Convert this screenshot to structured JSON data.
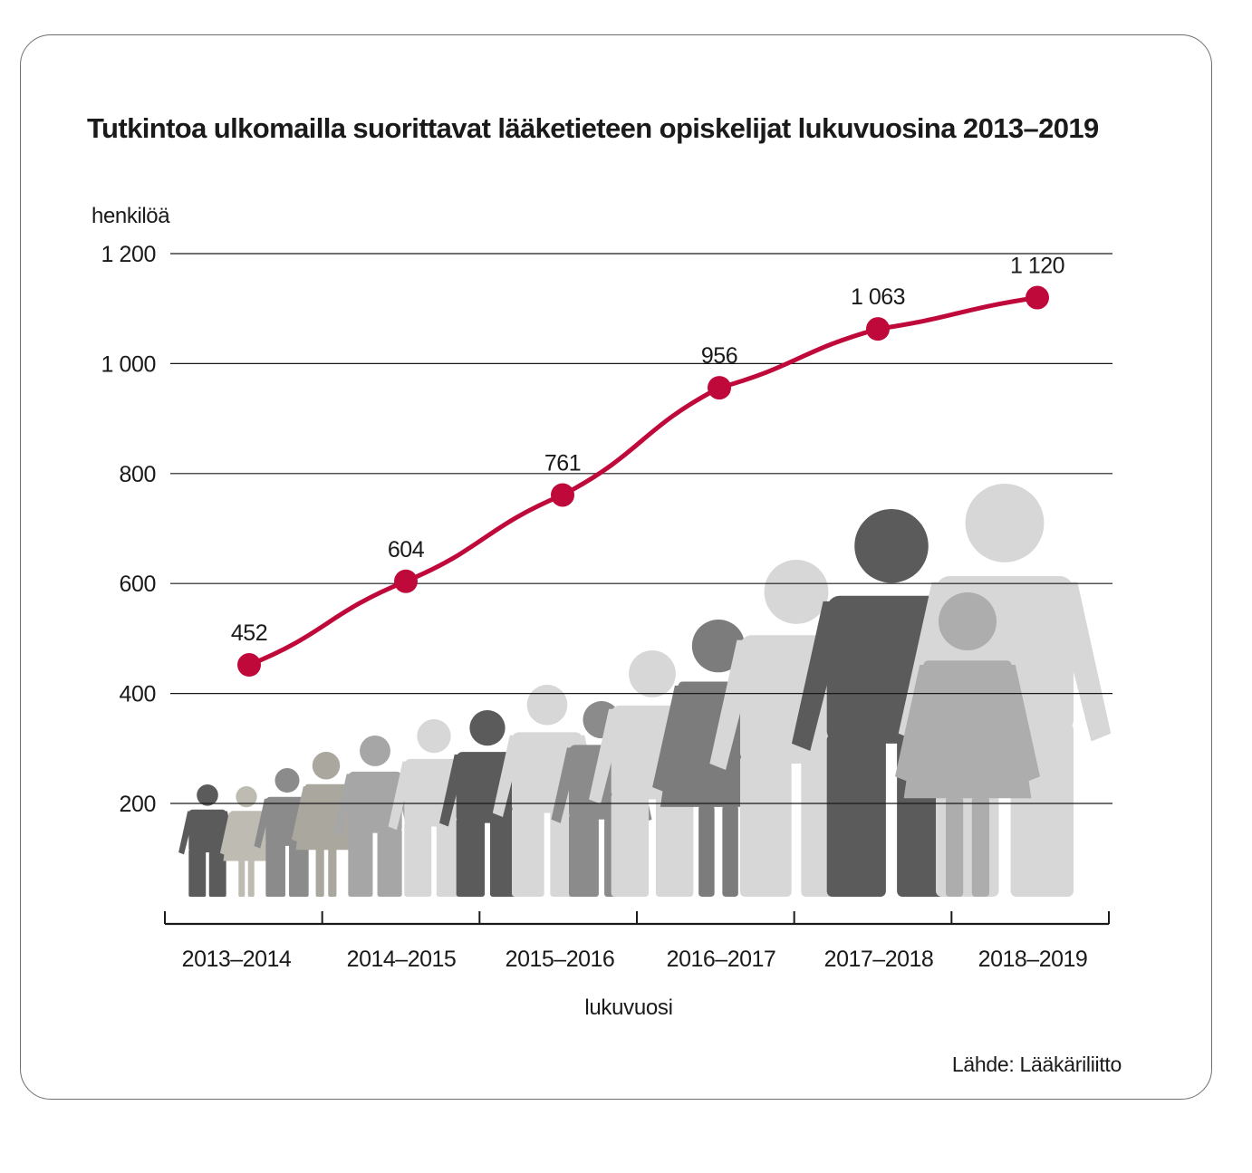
{
  "chart_data": {
    "type": "line",
    "title": "Tutkintoa ulkomailla suorittavat lääketieteen opiskelijat lukuvuosina 2013–2019",
    "ylabel": "henkilöä",
    "xlabel": "lukuvuosi",
    "categories": [
      "2013–2014",
      "2014–2015",
      "2015–2016",
      "2016–2017",
      "2017–2018",
      "2018–2019"
    ],
    "values": [
      452,
      604,
      761,
      956,
      1063,
      1120
    ],
    "value_labels": [
      "452",
      "604",
      "761",
      "956",
      "1 063",
      "1 120"
    ],
    "y_ticks": [
      200,
      400,
      600,
      800,
      1000,
      1200
    ],
    "y_tick_labels": [
      "200",
      "400",
      "600",
      "800",
      "1 000",
      "1 200"
    ],
    "ylim": [
      0,
      1200
    ],
    "grid": true,
    "line_color": "#c0093b",
    "source": "Lähde: Lääkäriliitto"
  },
  "people_colors": [
    "#5b5b5b",
    "#bdbbb2",
    "#8b8b8b",
    "#a9a79e",
    "#a6a6a6",
    "#d7d7d7",
    "#5b5b5b",
    "#d7d7d7",
    "#8b8b8b",
    "#d7d7d7",
    "#7c7c7c",
    "#d7d7d7",
    "#5b5b5b",
    "#d7d7d7",
    "#adadad"
  ]
}
